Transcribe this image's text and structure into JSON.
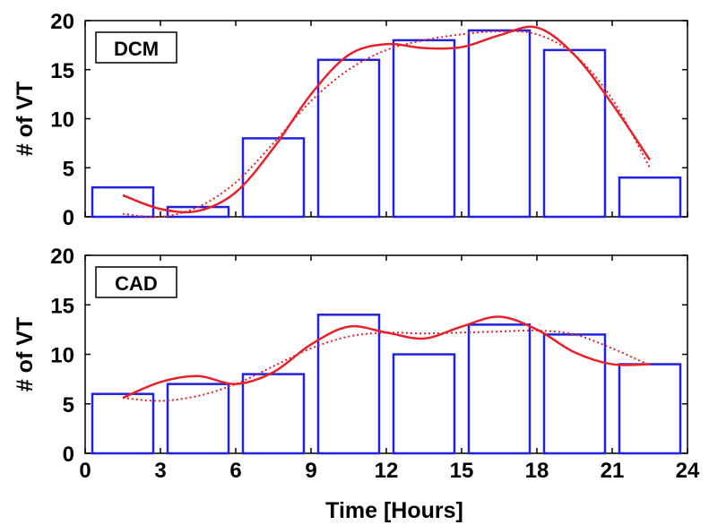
{
  "chart_data": [
    {
      "type": "bar",
      "label": "DCM",
      "xlabel": "",
      "ylabel": "# of VT",
      "xlim": [
        0,
        24
      ],
      "ylim": [
        0,
        20
      ],
      "xticks": [
        0,
        3,
        6,
        9,
        12,
        15,
        18,
        21,
        24
      ],
      "yticks": [
        0,
        5,
        10,
        15,
        20
      ],
      "bin_width_hours": 3,
      "bin_centers": [
        1.5,
        4.5,
        7.5,
        10.5,
        13.5,
        16.5,
        19.5,
        22.5
      ],
      "values": [
        3,
        1,
        8,
        16,
        18,
        19,
        17,
        4
      ],
      "fits": [
        {
          "style": "solid",
          "color": "#e8202a",
          "x": [
            1.5,
            3.0,
            4.5,
            6.0,
            7.5,
            9.0,
            10.5,
            12.0,
            13.5,
            15.0,
            16.5,
            18.0,
            19.5,
            21.0,
            22.5
          ],
          "y": [
            2.2,
            0.8,
            0.6,
            2.5,
            7.0,
            12.5,
            16.5,
            17.6,
            17.2,
            17.3,
            18.5,
            19.3,
            16.5,
            11.5,
            5.8
          ]
        },
        {
          "style": "dotted",
          "color": "#e8202a",
          "x": [
            1.5,
            3.0,
            4.5,
            6.0,
            7.5,
            9.0,
            10.5,
            12.0,
            13.5,
            15.0,
            16.5,
            18.0,
            19.5,
            21.0,
            22.5
          ],
          "y": [
            0.3,
            0.0,
            1.0,
            3.5,
            7.5,
            11.8,
            15.0,
            17.0,
            18.0,
            18.6,
            18.9,
            18.6,
            16.5,
            12.0,
            5.0
          ]
        }
      ]
    },
    {
      "type": "bar",
      "label": "CAD",
      "xlabel": "Time [Hours]",
      "ylabel": "# of VT",
      "xlim": [
        0,
        24
      ],
      "ylim": [
        0,
        20
      ],
      "xticks": [
        0,
        3,
        6,
        9,
        12,
        15,
        18,
        21,
        24
      ],
      "yticks": [
        0,
        5,
        10,
        15,
        20
      ],
      "bin_width_hours": 3,
      "bin_centers": [
        1.5,
        4.5,
        7.5,
        10.5,
        13.5,
        16.5,
        19.5,
        22.5
      ],
      "values": [
        6,
        7,
        8,
        14,
        10,
        13,
        12,
        9
      ],
      "fits": [
        {
          "style": "solid",
          "color": "#e8202a",
          "x": [
            1.5,
            3.0,
            4.5,
            6.0,
            7.5,
            9.0,
            10.5,
            12.0,
            13.5,
            15.0,
            16.5,
            18.0,
            19.5,
            21.0,
            22.5
          ],
          "y": [
            5.6,
            7.2,
            7.8,
            7.0,
            8.2,
            11.0,
            12.8,
            12.2,
            11.6,
            12.8,
            13.8,
            12.5,
            10.2,
            9.0,
            9.0
          ]
        },
        {
          "style": "dotted",
          "color": "#e8202a",
          "x": [
            1.5,
            3.0,
            4.5,
            6.0,
            7.5,
            9.0,
            10.5,
            12.0,
            13.5,
            15.0,
            16.5,
            18.0,
            19.5,
            21.0,
            22.5
          ],
          "y": [
            5.6,
            5.3,
            5.8,
            7.0,
            8.8,
            10.6,
            11.8,
            12.2,
            12.1,
            12.2,
            12.3,
            12.4,
            12.0,
            10.6,
            8.9
          ]
        }
      ]
    }
  ]
}
